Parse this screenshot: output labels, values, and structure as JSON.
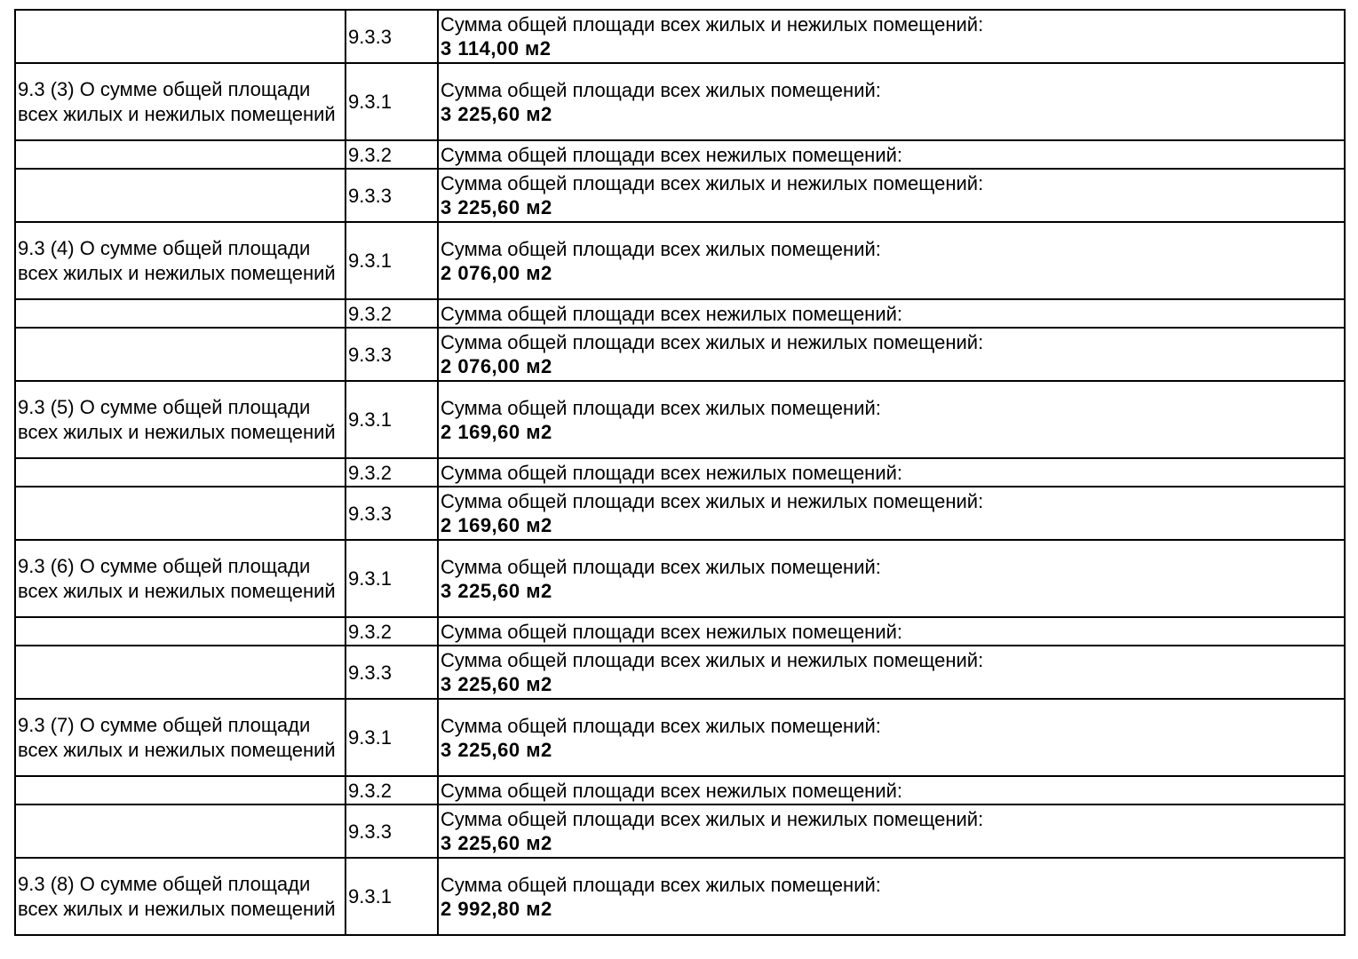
{
  "rows": [
    {
      "section": "",
      "code": "9.3.3",
      "label": "Сумма общей площади всех жилых и нежилых помещений:",
      "value": "3 114,00 м2"
    },
    {
      "section": "9.3 (3) О сумме общей площади всех жилых и нежилых помещений",
      "code": "9.3.1",
      "label": "Сумма общей площади всех жилых помещений:",
      "value": "3 225,60 м2"
    },
    {
      "section": "",
      "code": "9.3.2",
      "label": "Сумма общей площади всех нежилых помещений:",
      "value": ""
    },
    {
      "section": "",
      "code": "9.3.3",
      "label": "Сумма общей площади всех жилых и нежилых помещений:",
      "value": "3 225,60 м2"
    },
    {
      "section": "9.3 (4) О сумме общей площади всех жилых и нежилых помещений",
      "code": "9.3.1",
      "label": "Сумма общей площади всех жилых помещений:",
      "value": "2 076,00 м2"
    },
    {
      "section": "",
      "code": "9.3.2",
      "label": "Сумма общей площади всех нежилых помещений:",
      "value": ""
    },
    {
      "section": "",
      "code": "9.3.3",
      "label": "Сумма общей площади всех жилых и нежилых помещений:",
      "value": "2 076,00 м2"
    },
    {
      "section": "9.3 (5) О сумме общей площади всех жилых и нежилых помещений",
      "code": "9.3.1",
      "label": "Сумма общей площади всех жилых помещений:",
      "value": "2 169,60 м2"
    },
    {
      "section": "",
      "code": "9.3.2",
      "label": "Сумма общей площади всех нежилых помещений:",
      "value": ""
    },
    {
      "section": "",
      "code": "9.3.3",
      "label": "Сумма общей площади всех жилых и нежилых помещений:",
      "value": "2 169,60 м2"
    },
    {
      "section": "9.3 (6) О сумме общей площади всех жилых и нежилых помещений",
      "code": "9.3.1",
      "label": "Сумма общей площади всех жилых помещений:",
      "value": "3 225,60 м2"
    },
    {
      "section": "",
      "code": "9.3.2",
      "label": "Сумма общей площади всех нежилых помещений:",
      "value": ""
    },
    {
      "section": "",
      "code": "9.3.3",
      "label": "Сумма общей площади всех жилых и нежилых помещений:",
      "value": "3 225,60 м2"
    },
    {
      "section": "9.3 (7) О сумме общей площади всех жилых и нежилых помещений",
      "code": "9.3.1",
      "label": "Сумма общей площади всех жилых помещений:",
      "value": "3 225,60 м2"
    },
    {
      "section": "",
      "code": "9.3.2",
      "label": "Сумма общей площади всех нежилых помещений:",
      "value": ""
    },
    {
      "section": "",
      "code": "9.3.3",
      "label": "Сумма общей площади всех жилых и нежилых помещений:",
      "value": "3 225,60 м2"
    },
    {
      "section": "9.3 (8) О сумме общей площади всех жилых и нежилых помещений",
      "code": "9.3.1",
      "label": "Сумма общей площади всех жилых помещений:",
      "value": "2 992,80 м2"
    }
  ]
}
